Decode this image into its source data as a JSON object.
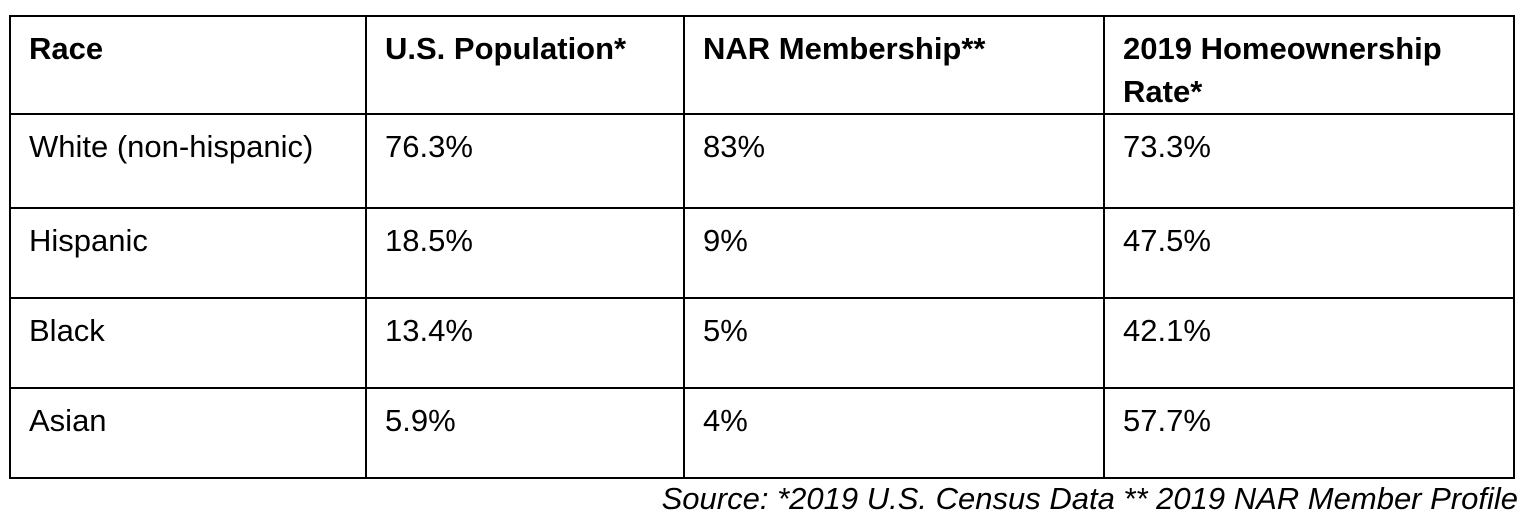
{
  "table": {
    "headers": [
      "Race",
      "U.S. Population*",
      "NAR Membership**",
      "2019 Homeownership Rate*"
    ],
    "rows": [
      [
        "White (non-hispanic)",
        "76.3%",
        "83%",
        "73.3%"
      ],
      [
        "Hispanic",
        "18.5%",
        "9%",
        "47.5%"
      ],
      [
        "Black",
        "13.4%",
        "5%",
        "42.1%"
      ],
      [
        "Asian",
        "5.9%",
        "4%",
        "57.7%"
      ]
    ]
  },
  "source": "Source: *2019 U.S. Census Data ** 2019 NAR Member Profile"
}
